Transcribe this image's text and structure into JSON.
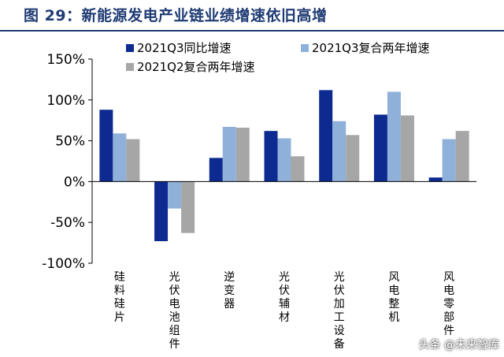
{
  "figure_title": "图 29：新能源发电产业链业绩增速依旧高增",
  "watermark": "头条 @未来智库",
  "colors": {
    "series1": "#0c2a8f",
    "series2": "#8fb0d9",
    "series3": "#a6a6a6",
    "title": "#1f3b73"
  },
  "chart_data": {
    "type": "bar",
    "title": "",
    "xlabel": "",
    "ylabel": "",
    "categories": [
      "硅料硅片",
      "光伏电池组件",
      "逆变器",
      "光伏辅材",
      "光伏加工设备",
      "风电整机",
      "风电零部件"
    ],
    "series": [
      {
        "name": "2021Q3同比增速",
        "values": [
          88,
          -73,
          29,
          62,
          112,
          82,
          5
        ]
      },
      {
        "name": "2021Q3复合两年增速",
        "values": [
          59,
          -33,
          67,
          53,
          74,
          110,
          52
        ]
      },
      {
        "name": "2021Q2复合两年增速",
        "values": [
          52,
          -63,
          66,
          31,
          57,
          81,
          62
        ]
      }
    ],
    "ylim": [
      -100,
      150
    ],
    "yticks": [
      "150%",
      "100%",
      "50%",
      "0%",
      "-50%",
      "-100%"
    ],
    "legend_position": "top",
    "grid": false
  }
}
